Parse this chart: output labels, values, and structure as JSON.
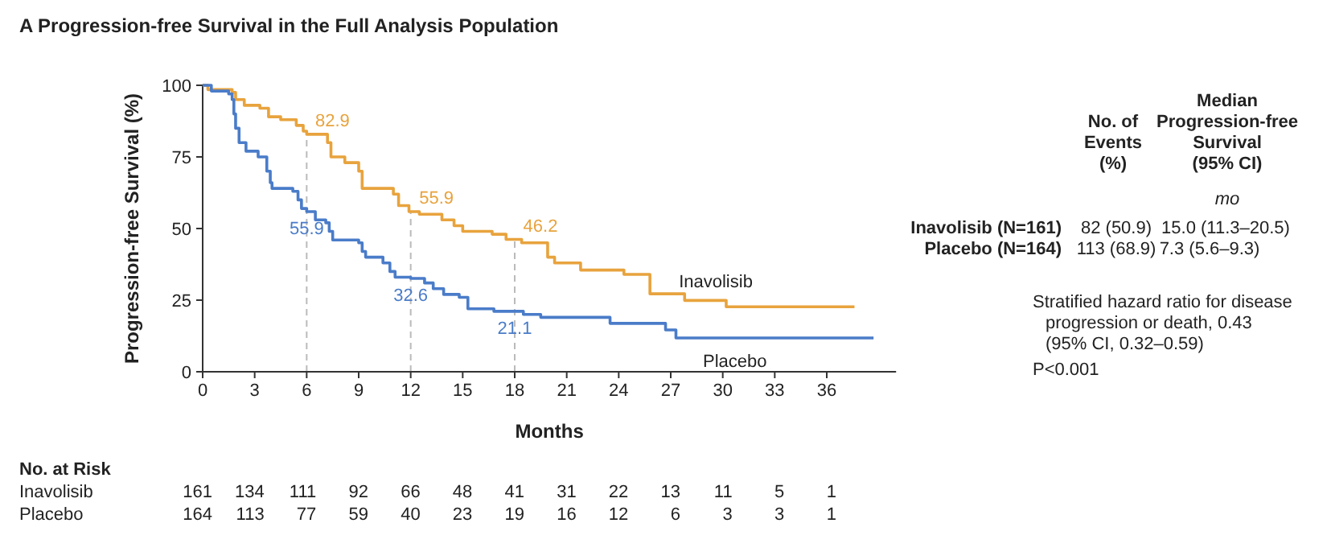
{
  "chart_data": {
    "type": "step",
    "title": "A  Progression-free Survival in the Full Analysis Population",
    "xlabel": "Months",
    "ylabel": "Progression-free Survival (%)",
    "xlim": [
      0,
      40
    ],
    "ylim": [
      0,
      100
    ],
    "xticks": [
      0,
      3,
      6,
      9,
      12,
      15,
      18,
      21,
      24,
      27,
      30,
      33,
      36
    ],
    "yticks": [
      0,
      25,
      50,
      75,
      100
    ],
    "grid": false,
    "legend": false,
    "series": [
      {
        "name": "Inavolisib",
        "color": "#e8a33d",
        "x": [
          0,
          0.3,
          1.7,
          1.9,
          2.4,
          3.3,
          3.8,
          4.5,
          5.4,
          5.8,
          6.0,
          7.2,
          7.4,
          8.2,
          9.0,
          9.2,
          11.0,
          11.3,
          11.9,
          12.5,
          13.8,
          14.5,
          15.0,
          16.7,
          17.5,
          18.4,
          19.9,
          20.3,
          21.8,
          24.3,
          25.8,
          27.8,
          30.2,
          37.6
        ],
        "values": [
          100,
          98.5,
          97.5,
          95,
          93,
          92,
          89,
          88,
          86,
          84,
          82.9,
          80,
          75,
          73,
          70,
          64,
          62,
          58,
          55.9,
          55,
          53,
          51,
          49,
          48,
          46.2,
          45,
          40,
          38,
          35.5,
          34,
          27.2,
          24.9,
          22.7,
          22.7
        ]
      },
      {
        "name": "Placebo",
        "color": "#4a7cc9",
        "x": [
          0,
          0.5,
          1.5,
          1.7,
          1.8,
          1.9,
          2.1,
          2.5,
          3.2,
          3.7,
          3.9,
          4.0,
          5.2,
          5.5,
          5.7,
          6.0,
          6.5,
          7.1,
          7.3,
          7.5,
          9.0,
          9.2,
          9.4,
          10.4,
          10.8,
          11.1,
          12.0,
          12.8,
          13.3,
          13.9,
          14.8,
          15.3,
          16.8,
          18.5,
          19.5,
          23.5,
          26.7,
          27.3,
          38.7
        ],
        "values": [
          100,
          98,
          97,
          95,
          90,
          85,
          80,
          77,
          75,
          70,
          66,
          64,
          63,
          60,
          57,
          55.9,
          53,
          52,
          49,
          46,
          45,
          42,
          40,
          38,
          35,
          33,
          32.6,
          31,
          29,
          27,
          26,
          22,
          21.1,
          20,
          19,
          16.9,
          14.6,
          11.8,
          11.8
        ]
      }
    ],
    "ref_lines": [
      {
        "axis": "x",
        "value": 6,
        "color": "#bbbbbb",
        "line_style": "dashed"
      },
      {
        "axis": "x",
        "value": 12,
        "color": "#bbbbbb",
        "line_style": "dashed"
      },
      {
        "axis": "x",
        "value": 18,
        "color": "#bbbbbb",
        "line_style": "dashed"
      }
    ],
    "annotations": [
      "No. of\nEvents\n(%)",
      "Median\nProgression-free\nSurvival\n(95% CI)",
      "mo",
      "Inavolisib (N=161)",
      "82 (50.9)",
      "15.0 (11.3–20.5)",
      "Placebo (N=164)",
      "113 (68.9)",
      "7.3 (5.6–9.3)",
      "Stratified hazard ratio for disease\nprogression or death, 0.43\n(95% CI, 0.32–0.59)",
      "P<0.001",
      "No. at Risk",
      "Inavolisib\t161 134 111 92 66 48 41 31 22 13 11 5 1",
      "Placebo\t164 113 77 59 40 23 19 16 12 6 3 3 1",
      {
        "text": "82.9",
        "x": 6,
        "y": 82.9
      },
      {
        "text": "55.9",
        "x": 12,
        "y": 55.9
      },
      {
        "text": "46.2",
        "x": 18,
        "y": 46.2
      },
      {
        "text": "55.9",
        "x": 6,
        "y": 55.9
      },
      {
        "text": "32.6",
        "x": 12,
        "y": 32.6
      },
      {
        "text": "21.1",
        "x": 18,
        "y": 21.1
      }
    ]
  }
}
